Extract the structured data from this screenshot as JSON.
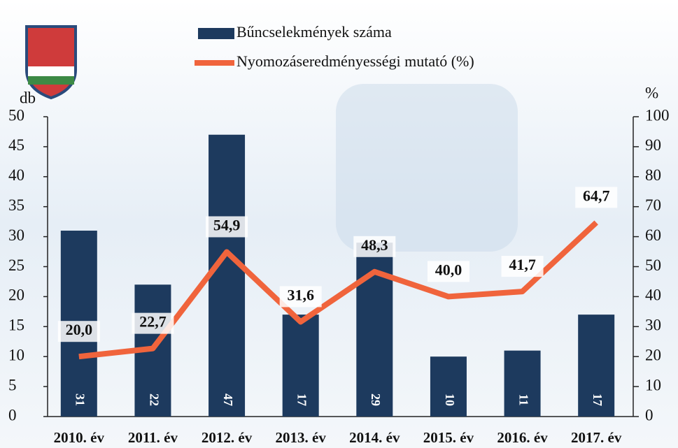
{
  "chart_data": {
    "type": "combo",
    "categories": [
      "2010. év",
      "2011. év",
      "2012. év",
      "2013. év",
      "2014. év",
      "2015. év",
      "2016. év",
      "2017. év"
    ],
    "series": [
      {
        "name": "Bűncselekmények száma",
        "type": "bar",
        "color": "#1d3a5e",
        "values": [
          31,
          22,
          47,
          17,
          29,
          10,
          11,
          17
        ]
      },
      {
        "name": "Nyomozáseredményességi mutató (%)",
        "type": "line",
        "axis": "y2",
        "color": "#f0643c",
        "values": [
          20.0,
          22.7,
          54.9,
          31.6,
          48.3,
          40.0,
          41.7,
          64.7
        ],
        "value_labels": [
          "20,0",
          "22,7",
          "54,9",
          "31,6",
          "48,3",
          "40,0",
          "41,7",
          "64,7"
        ]
      }
    ],
    "ylabel": "db",
    "y2label": "%",
    "ylim": [
      0,
      50
    ],
    "yticks": [
      0,
      5,
      10,
      15,
      20,
      25,
      30,
      35,
      40,
      45,
      50
    ],
    "y2lim": [
      0,
      100
    ],
    "y2ticks": [
      0,
      10,
      20,
      30,
      40,
      50,
      60,
      70,
      80,
      90,
      100
    ]
  }
}
